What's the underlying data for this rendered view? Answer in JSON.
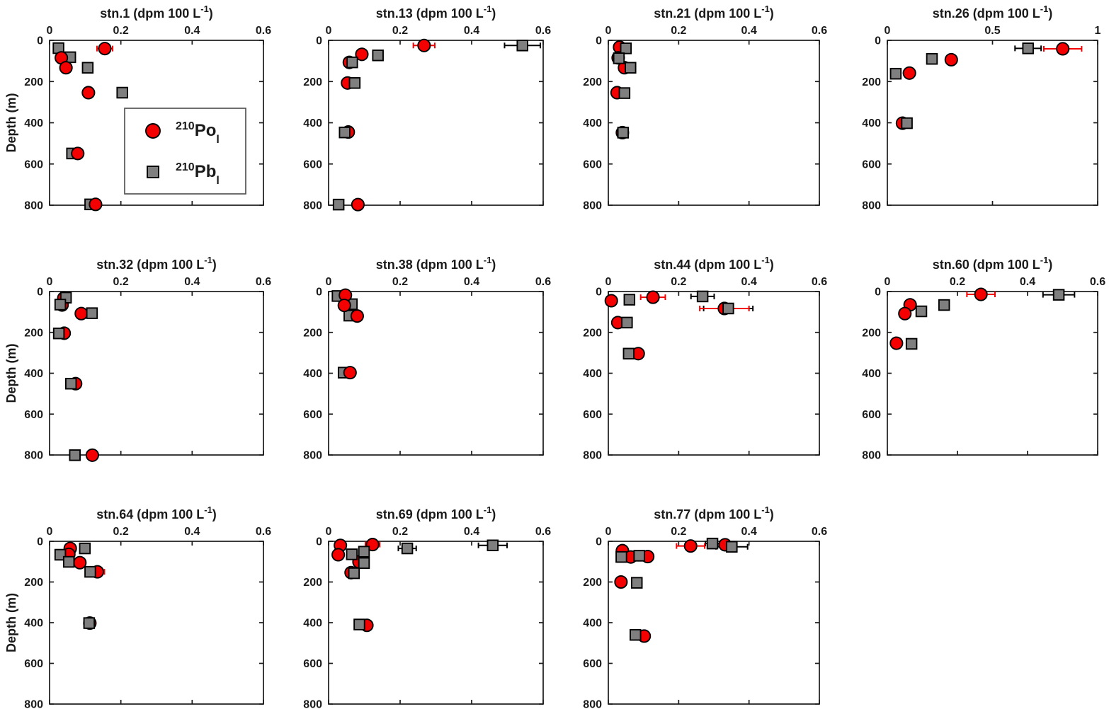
{
  "figure": {
    "ylabel": "Depth (m)",
    "ylim": [
      0,
      800
    ],
    "yticks": [
      0,
      200,
      400,
      600,
      800
    ],
    "colors": {
      "po_fill": "#f40000",
      "pb_fill": "#7f7f7f",
      "marker_edge": "#000000",
      "po_err": "#f40000",
      "pb_err": "#000000",
      "axis": "#1a1a1a",
      "text": "#1a1a1a",
      "legend_border": "#4a4a4a",
      "background": "#ffffff"
    },
    "legend": {
      "entries": [
        {
          "marker": "circle",
          "sup": "210",
          "main": "Po",
          "sub": "l"
        },
        {
          "marker": "square",
          "sup": "210",
          "main": "Pb",
          "sub": "l"
        }
      ]
    }
  },
  "chart_data": [
    {
      "type": "scatter",
      "station": "stn.1",
      "row": 0,
      "col": 0,
      "show_legend": true,
      "po_on_top": true,
      "title_pre": "stn.1 (dpm 100 L",
      "title_sup": "-1",
      "title_post": ")",
      "xlim": [
        0,
        0.6
      ],
      "xticks": [
        0,
        0.2,
        0.4,
        0.6
      ],
      "series": [
        {
          "name": "210Po_l",
          "points": [
            [
              0.155,
              40,
              0.022
            ],
            [
              0.033,
              85,
              0
            ],
            [
              0.046,
              133,
              0
            ],
            [
              0.109,
              254,
              0
            ],
            [
              0.079,
              549,
              0
            ],
            [
              0.129,
              796,
              0
            ]
          ]
        },
        {
          "name": "210Pb_l",
          "points": [
            [
              0.025,
              38,
              0.012
            ],
            [
              0.058,
              82,
              0
            ],
            [
              0.107,
              133,
              0
            ],
            [
              0.204,
              254,
              0.008
            ],
            [
              0.063,
              549,
              0
            ],
            [
              0.114,
              796,
              0
            ]
          ]
        }
      ]
    },
    {
      "type": "scatter",
      "station": "stn.13",
      "row": 0,
      "col": 1,
      "show_legend": false,
      "po_on_top": false,
      "title_pre": "stn.13 (dpm 100 L",
      "title_sup": "-1",
      "title_post": ")",
      "xlim": [
        0,
        0.6
      ],
      "xticks": [
        0,
        0.2,
        0.4,
        0.6
      ],
      "series": [
        {
          "name": "210Po_l",
          "points": [
            [
              0.267,
              25,
              0.03
            ],
            [
              0.093,
              68,
              0
            ],
            [
              0.058,
              107,
              0
            ],
            [
              0.053,
              207,
              0
            ],
            [
              0.055,
              445,
              0
            ],
            [
              0.082,
              797,
              0
            ]
          ]
        },
        {
          "name": "210Pb_l",
          "points": [
            [
              0.542,
              25,
              0.05
            ],
            [
              0.138,
              73,
              0.013
            ],
            [
              0.066,
              107,
              0
            ],
            [
              0.073,
              207,
              0
            ],
            [
              0.045,
              447,
              0
            ],
            [
              0.028,
              797,
              0
            ]
          ]
        }
      ]
    },
    {
      "type": "scatter",
      "station": "stn.21",
      "row": 0,
      "col": 2,
      "show_legend": false,
      "po_on_top": false,
      "title_pre": "stn.21 (dpm 100 L",
      "title_sup": "-1",
      "title_post": ")",
      "xlim": [
        0,
        0.6
      ],
      "xticks": [
        0,
        0.2,
        0.4,
        0.6
      ],
      "series": [
        {
          "name": "210Po_l",
          "points": [
            [
              0.032,
              33,
              0
            ],
            [
              0.028,
              85,
              0
            ],
            [
              0.046,
              133,
              0
            ],
            [
              0.025,
              254,
              0
            ],
            [
              0.04,
              448,
              0
            ]
          ]
        },
        {
          "name": "210Pb_l",
          "points": [
            [
              0.05,
              39,
              0
            ],
            [
              0.03,
              87,
              0
            ],
            [
              0.063,
              133,
              0
            ],
            [
              0.046,
              256,
              0
            ],
            [
              0.042,
              448,
              0
            ]
          ]
        }
      ]
    },
    {
      "type": "scatter",
      "station": "stn.26",
      "row": 0,
      "col": 3,
      "show_legend": false,
      "po_on_top": false,
      "title_pre": "stn.26 (dpm 100 L",
      "title_sup": "-1",
      "title_post": ")",
      "xlim": [
        0,
        1
      ],
      "xticks": [
        0,
        0.5,
        1
      ],
      "series": [
        {
          "name": "210Po_l",
          "points": [
            [
              0.834,
              41,
              0.09
            ],
            [
              0.304,
              94,
              0.02
            ],
            [
              0.105,
              159,
              0
            ],
            [
              0.072,
              402,
              0.02
            ]
          ]
        },
        {
          "name": "210Pb_l",
          "points": [
            [
              0.669,
              39,
              0.062
            ],
            [
              0.212,
              90,
              0
            ],
            [
              0.04,
              162,
              0
            ],
            [
              0.093,
              402,
              0
            ]
          ]
        }
      ]
    },
    {
      "type": "scatter",
      "station": "stn.32",
      "row": 1,
      "col": 0,
      "show_legend": false,
      "po_on_top": false,
      "title_pre": "stn.32 (dpm 100 L",
      "title_sup": "-1",
      "title_post": ")",
      "xlim": [
        0,
        0.6
      ],
      "xticks": [
        0,
        0.2,
        0.4,
        0.6
      ],
      "series": [
        {
          "name": "210Po_l",
          "points": [
            [
              0.04,
              32,
              0.012
            ],
            [
              0.035,
              66,
              0
            ],
            [
              0.089,
              108,
              0
            ],
            [
              0.041,
              204,
              0
            ],
            [
              0.073,
              451,
              0
            ],
            [
              0.12,
              801,
              0
            ]
          ]
        },
        {
          "name": "210Pb_l",
          "points": [
            [
              0.046,
              30,
              0.01
            ],
            [
              0.03,
              64,
              0
            ],
            [
              0.119,
              106,
              0
            ],
            [
              0.026,
              205,
              0
            ],
            [
              0.06,
              451,
              0
            ],
            [
              0.071,
              801,
              0
            ]
          ]
        }
      ]
    },
    {
      "type": "scatter",
      "station": "stn.38",
      "row": 1,
      "col": 1,
      "show_legend": false,
      "po_on_top": true,
      "title_pre": "stn.38 (dpm 100 L",
      "title_sup": "-1",
      "title_post": ")",
      "xlim": [
        0,
        0.6
      ],
      "xticks": [
        0,
        0.2,
        0.4,
        0.6
      ],
      "series": [
        {
          "name": "210Po_l",
          "points": [
            [
              0.047,
              18,
              0
            ],
            [
              0.044,
              68,
              0
            ],
            [
              0.08,
              120,
              0
            ],
            [
              0.06,
              397,
              0
            ]
          ]
        },
        {
          "name": "210Pb_l",
          "points": [
            [
              0.025,
              22,
              0
            ],
            [
              0.065,
              62,
              0
            ],
            [
              0.058,
              118,
              0
            ],
            [
              0.042,
              397,
              0
            ]
          ]
        }
      ]
    },
    {
      "type": "scatter",
      "station": "stn.44",
      "row": 1,
      "col": 2,
      "show_legend": false,
      "po_on_top": false,
      "title_pre": "stn.44 (dpm 100 L",
      "title_sup": "-1",
      "title_post": ")",
      "xlim": [
        0,
        0.6
      ],
      "xticks": [
        0,
        0.2,
        0.4,
        0.6
      ],
      "series": [
        {
          "name": "210Po_l",
          "points": [
            [
              0.0085,
              45,
              0
            ],
            [
              0.127,
              28,
              0.035
            ],
            [
              0.33,
              83,
              0.07
            ],
            [
              0.027,
              152,
              0
            ],
            [
              0.085,
              304,
              0
            ]
          ]
        },
        {
          "name": "210Pb_l",
          "points": [
            [
              0.06,
              40,
              0
            ],
            [
              0.268,
              24,
              0.033
            ],
            [
              0.341,
              83,
              0.07
            ],
            [
              0.053,
              152,
              0
            ],
            [
              0.058,
              304,
              0
            ]
          ]
        }
      ]
    },
    {
      "type": "scatter",
      "station": "stn.60",
      "row": 1,
      "col": 3,
      "show_legend": false,
      "po_on_top": false,
      "title_pre": "stn.60 (dpm 100 L",
      "title_sup": "-1",
      "title_post": ")",
      "xlim": [
        0,
        0.6
      ],
      "xticks": [
        0,
        0.2,
        0.4,
        0.6
      ],
      "series": [
        {
          "name": "210Po_l",
          "points": [
            [
              0.267,
              14,
              0.04
            ],
            [
              0.065,
              65,
              0
            ],
            [
              0.05,
              108,
              0
            ],
            [
              0.026,
              253,
              0
            ]
          ]
        },
        {
          "name": "210Pb_l",
          "points": [
            [
              0.489,
              16,
              0.045
            ],
            [
              0.162,
              66,
              0.012
            ],
            [
              0.097,
              97,
              0
            ],
            [
              0.069,
              256,
              0
            ]
          ]
        }
      ]
    },
    {
      "type": "scatter",
      "station": "stn.64",
      "row": 2,
      "col": 0,
      "show_legend": false,
      "po_on_top": false,
      "title_pre": "stn.64 (dpm 100 L",
      "title_sup": "-1",
      "title_post": ")",
      "xlim": [
        0,
        0.6
      ],
      "xticks": [
        0,
        0.2,
        0.4,
        0.6
      ],
      "series": [
        {
          "name": "210Po_l",
          "points": [
            [
              0.058,
              35,
              0
            ],
            [
              0.054,
              64,
              0
            ],
            [
              0.085,
              105,
              0
            ],
            [
              0.134,
              150,
              0.02
            ],
            [
              0.113,
              402,
              0.012
            ]
          ]
        },
        {
          "name": "210Pb_l",
          "points": [
            [
              0.099,
              35,
              0
            ],
            [
              0.03,
              66,
              0.014
            ],
            [
              0.054,
              101,
              0
            ],
            [
              0.114,
              150,
              0.01
            ],
            [
              0.111,
              402,
              0
            ]
          ]
        }
      ]
    },
    {
      "type": "scatter",
      "station": "stn.69",
      "row": 2,
      "col": 1,
      "show_legend": false,
      "po_on_top": false,
      "title_pre": "stn.69 (dpm 100 L",
      "title_sup": "-1",
      "title_post": ")",
      "xlim": [
        0,
        0.6
      ],
      "xticks": [
        0,
        0.2,
        0.4,
        0.6
      ],
      "series": [
        {
          "name": "210Po_l",
          "points": [
            [
              0.033,
              20,
              0
            ],
            [
              0.123,
              16,
              0.02
            ],
            [
              0.027,
              66,
              0
            ],
            [
              0.085,
              101,
              0
            ],
            [
              0.063,
              154,
              0
            ],
            [
              0.107,
              413,
              0
            ]
          ]
        },
        {
          "name": "210Pb_l",
          "points": [
            [
              0.22,
              35,
              0.025
            ],
            [
              0.459,
              20,
              0.04
            ],
            [
              0.099,
              51,
              0
            ],
            [
              0.065,
              64,
              0
            ],
            [
              0.099,
              107,
              0
            ],
            [
              0.071,
              157,
              0
            ],
            [
              0.086,
              409,
              0
            ]
          ]
        }
      ]
    },
    {
      "type": "scatter",
      "station": "stn.77",
      "row": 2,
      "col": 2,
      "show_legend": false,
      "po_on_top": false,
      "title_pre": "stn.77 (dpm 100 L",
      "title_sup": "-1",
      "title_post": ")",
      "xlim": [
        0,
        0.6
      ],
      "xticks": [
        0,
        0.2,
        0.4,
        0.6
      ],
      "series": [
        {
          "name": "210Po_l",
          "points": [
            [
              0.234,
              23,
              0.04
            ],
            [
              0.332,
              17,
              0
            ],
            [
              0.04,
              46,
              0
            ],
            [
              0.064,
              77,
              0
            ],
            [
              0.112,
              75,
              0
            ],
            [
              0.036,
              200,
              0
            ],
            [
              0.102,
              466,
              0
            ]
          ]
        },
        {
          "name": "210Pb_l",
          "points": [
            [
              0.296,
              11,
              0.02
            ],
            [
              0.351,
              27,
              0.045
            ],
            [
              0.037,
              77,
              0
            ],
            [
              0.088,
              71,
              0
            ],
            [
              0.081,
              204,
              0.012
            ],
            [
              0.077,
              460,
              0
            ]
          ]
        }
      ]
    }
  ]
}
